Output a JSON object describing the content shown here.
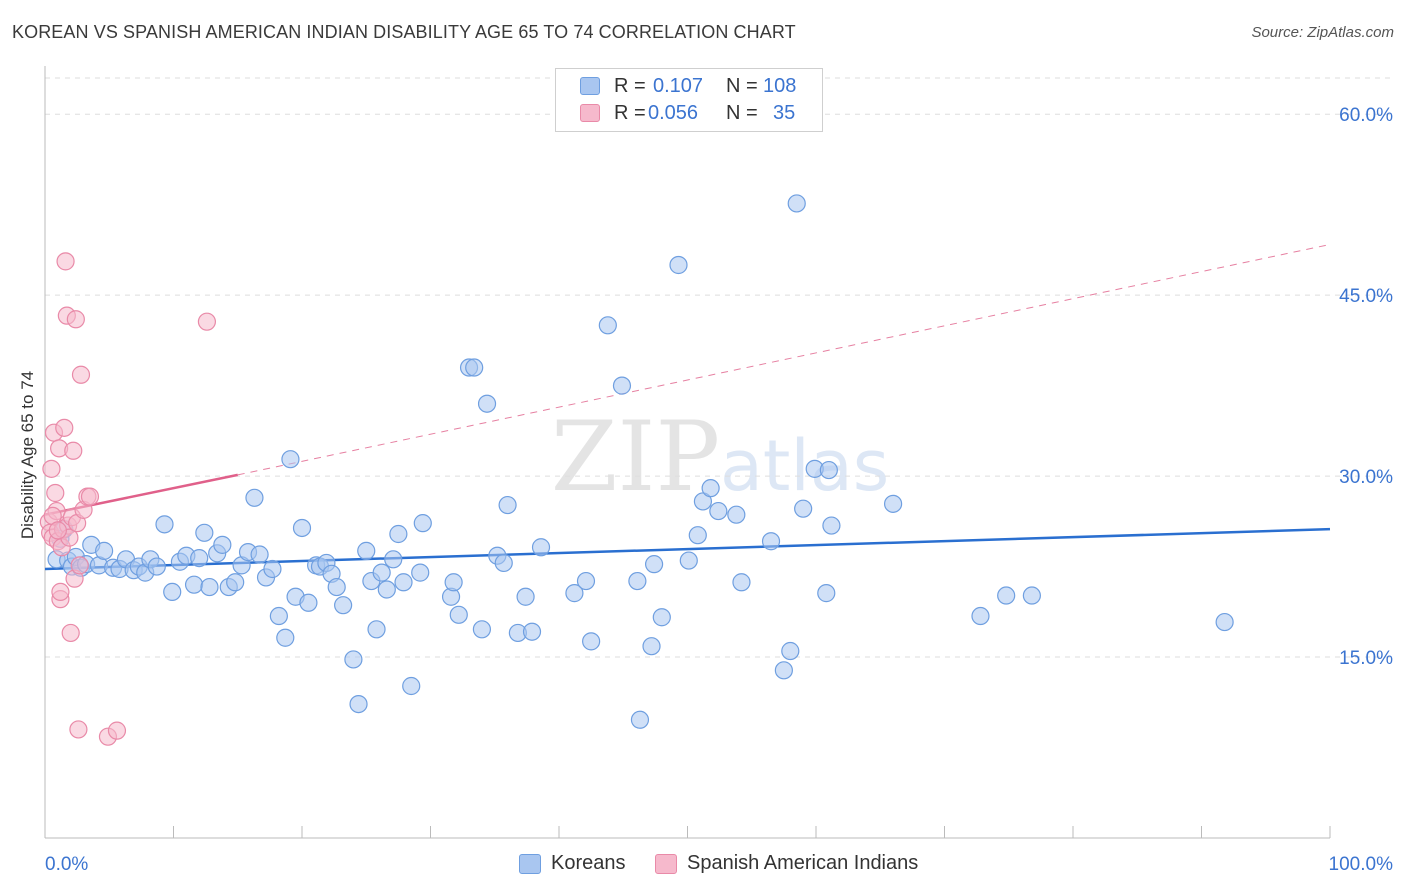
{
  "title": "KOREAN VS SPANISH AMERICAN INDIAN DISABILITY AGE 65 TO 74 CORRELATION CHART",
  "source": "Source: ZipAtlas.com",
  "watermark": "ZIPatlas",
  "legend": {
    "koreans": {
      "r_label": "R =",
      "r_value": "0.107",
      "n_label": "N =",
      "n_value": "108"
    },
    "spanish": {
      "r_label": "R =",
      "r_value": "0.056",
      "n_label": "N =",
      "n_value": "35"
    }
  },
  "colors": {
    "blue_fill": "#a9c6f0",
    "blue_stroke": "#6f9fe0",
    "blue_line": "#2a6fd0",
    "pink_fill": "#f6b9cc",
    "pink_stroke": "#e98aa8",
    "pink_line": "#e0608a",
    "tick_text": "#3b74d0",
    "grid": "#dddddd"
  },
  "chart_data": {
    "type": "scatter",
    "title": "KOREAN VS SPANISH AMERICAN INDIAN DISABILITY AGE 65 TO 74 CORRELATION CHART",
    "xlabel": "",
    "ylabel": "Disability Age 65 to 74",
    "xlim": [
      0,
      100
    ],
    "ylim": [
      0,
      63
    ],
    "x_tick_labels": [
      "0.0%",
      "100.0%"
    ],
    "y_ticks": [
      15,
      30,
      45,
      60
    ],
    "y_tick_labels": [
      "15.0%",
      "30.0%",
      "45.0%",
      "60.0%"
    ],
    "legend_position": "top-center",
    "series": [
      {
        "name": "Koreans",
        "color": "#a9c6f0",
        "points": [
          [
            0.9,
            23.1
          ],
          [
            1.2,
            24.8
          ],
          [
            1.5,
            25.6
          ],
          [
            1.8,
            23.0
          ],
          [
            2.1,
            22.5
          ],
          [
            2.4,
            23.3
          ],
          [
            2.8,
            22.4
          ],
          [
            3.2,
            22.7
          ],
          [
            3.6,
            24.3
          ],
          [
            4.2,
            22.6
          ],
          [
            4.6,
            23.8
          ],
          [
            5.3,
            22.4
          ],
          [
            5.8,
            22.3
          ],
          [
            6.3,
            23.1
          ],
          [
            6.9,
            22.2
          ],
          [
            7.3,
            22.5
          ],
          [
            7.8,
            22.0
          ],
          [
            8.2,
            23.1
          ],
          [
            8.7,
            22.5
          ],
          [
            9.3,
            26.0
          ],
          [
            9.9,
            20.4
          ],
          [
            10.5,
            22.9
          ],
          [
            11.0,
            23.4
          ],
          [
            11.6,
            21.0
          ],
          [
            12.0,
            23.2
          ],
          [
            12.4,
            25.3
          ],
          [
            12.8,
            20.8
          ],
          [
            13.4,
            23.6
          ],
          [
            13.8,
            24.3
          ],
          [
            14.3,
            20.8
          ],
          [
            14.8,
            21.2
          ],
          [
            15.3,
            22.6
          ],
          [
            15.8,
            23.7
          ],
          [
            16.3,
            28.2
          ],
          [
            16.7,
            23.5
          ],
          [
            17.2,
            21.6
          ],
          [
            17.7,
            22.3
          ],
          [
            18.2,
            18.4
          ],
          [
            18.7,
            16.6
          ],
          [
            19.1,
            31.4
          ],
          [
            19.5,
            20.0
          ],
          [
            20.0,
            25.7
          ],
          [
            20.5,
            19.5
          ],
          [
            21.1,
            22.6
          ],
          [
            21.4,
            22.5
          ],
          [
            21.9,
            22.8
          ],
          [
            22.3,
            21.9
          ],
          [
            22.7,
            20.8
          ],
          [
            23.2,
            19.3
          ],
          [
            24.0,
            14.8
          ],
          [
            24.4,
            11.1
          ],
          [
            25.0,
            23.8
          ],
          [
            25.4,
            21.3
          ],
          [
            25.8,
            17.3
          ],
          [
            26.2,
            22.0
          ],
          [
            26.6,
            20.6
          ],
          [
            27.1,
            23.1
          ],
          [
            27.5,
            25.2
          ],
          [
            27.9,
            21.2
          ],
          [
            28.5,
            12.6
          ],
          [
            29.2,
            22.0
          ],
          [
            29.4,
            26.1
          ],
          [
            31.6,
            20.0
          ],
          [
            31.8,
            21.2
          ],
          [
            32.2,
            18.5
          ],
          [
            33.0,
            39.0
          ],
          [
            33.4,
            39.0
          ],
          [
            34.0,
            17.3
          ],
          [
            34.4,
            36.0
          ],
          [
            35.2,
            23.4
          ],
          [
            35.7,
            22.8
          ],
          [
            36.0,
            27.6
          ],
          [
            36.8,
            17.0
          ],
          [
            37.4,
            20.0
          ],
          [
            37.9,
            17.1
          ],
          [
            38.6,
            24.1
          ],
          [
            41.2,
            20.3
          ],
          [
            42.1,
            21.3
          ],
          [
            42.5,
            16.3
          ],
          [
            43.8,
            42.5
          ],
          [
            44.9,
            37.5
          ],
          [
            46.1,
            21.3
          ],
          [
            46.3,
            9.8
          ],
          [
            47.2,
            15.9
          ],
          [
            47.4,
            22.7
          ],
          [
            48.0,
            18.3
          ],
          [
            49.3,
            47.5
          ],
          [
            50.1,
            23.0
          ],
          [
            50.8,
            25.1
          ],
          [
            51.2,
            27.9
          ],
          [
            51.8,
            29.0
          ],
          [
            52.4,
            27.1
          ],
          [
            53.8,
            26.8
          ],
          [
            54.2,
            21.2
          ],
          [
            56.5,
            24.6
          ],
          [
            57.5,
            13.9
          ],
          [
            58.0,
            15.5
          ],
          [
            58.5,
            52.6
          ],
          [
            59.0,
            27.3
          ],
          [
            59.9,
            30.6
          ],
          [
            60.8,
            20.3
          ],
          [
            61.0,
            30.5
          ],
          [
            61.2,
            25.9
          ],
          [
            66.0,
            27.7
          ],
          [
            72.8,
            18.4
          ],
          [
            74.8,
            20.1
          ],
          [
            76.8,
            20.1
          ],
          [
            91.8,
            17.9
          ]
        ]
      },
      {
        "name": "Spanish American Indians",
        "color": "#f6b9cc",
        "points": [
          [
            0.3,
            26.2
          ],
          [
            0.4,
            25.3
          ],
          [
            0.5,
            30.6
          ],
          [
            0.6,
            24.9
          ],
          [
            0.7,
            33.6
          ],
          [
            0.8,
            28.6
          ],
          [
            0.9,
            27.1
          ],
          [
            1.0,
            24.6
          ],
          [
            1.1,
            32.3
          ],
          [
            1.2,
            19.8
          ],
          [
            1.2,
            20.4
          ],
          [
            1.3,
            24.1
          ],
          [
            1.4,
            25.6
          ],
          [
            1.5,
            34.0
          ],
          [
            1.6,
            47.8
          ],
          [
            1.7,
            43.3
          ],
          [
            1.8,
            25.9
          ],
          [
            1.9,
            24.9
          ],
          [
            2.0,
            17.0
          ],
          [
            2.1,
            26.6
          ],
          [
            2.2,
            32.1
          ],
          [
            2.3,
            21.5
          ],
          [
            2.4,
            43.0
          ],
          [
            2.5,
            26.1
          ],
          [
            2.6,
            9.0
          ],
          [
            2.7,
            22.6
          ],
          [
            2.8,
            38.4
          ],
          [
            3.0,
            27.2
          ],
          [
            3.3,
            28.3
          ],
          [
            3.5,
            28.3
          ],
          [
            4.9,
            8.4
          ],
          [
            5.6,
            8.9
          ],
          [
            12.6,
            42.8
          ],
          [
            0.6,
            26.7
          ],
          [
            1.0,
            25.5
          ]
        ]
      }
    ],
    "trend_lines": [
      {
        "series": "Koreans",
        "x": [
          0,
          100
        ],
        "y": [
          22.3,
          25.6
        ],
        "style": "solid"
      },
      {
        "series": "Spanish American Indians",
        "x": [
          0,
          15
        ],
        "y": [
          26.8,
          30.1
        ],
        "style": "solid"
      },
      {
        "series": "Spanish American Indians",
        "x": [
          15,
          100
        ],
        "y": [
          30.1,
          49.2
        ],
        "style": "dashed"
      }
    ]
  }
}
